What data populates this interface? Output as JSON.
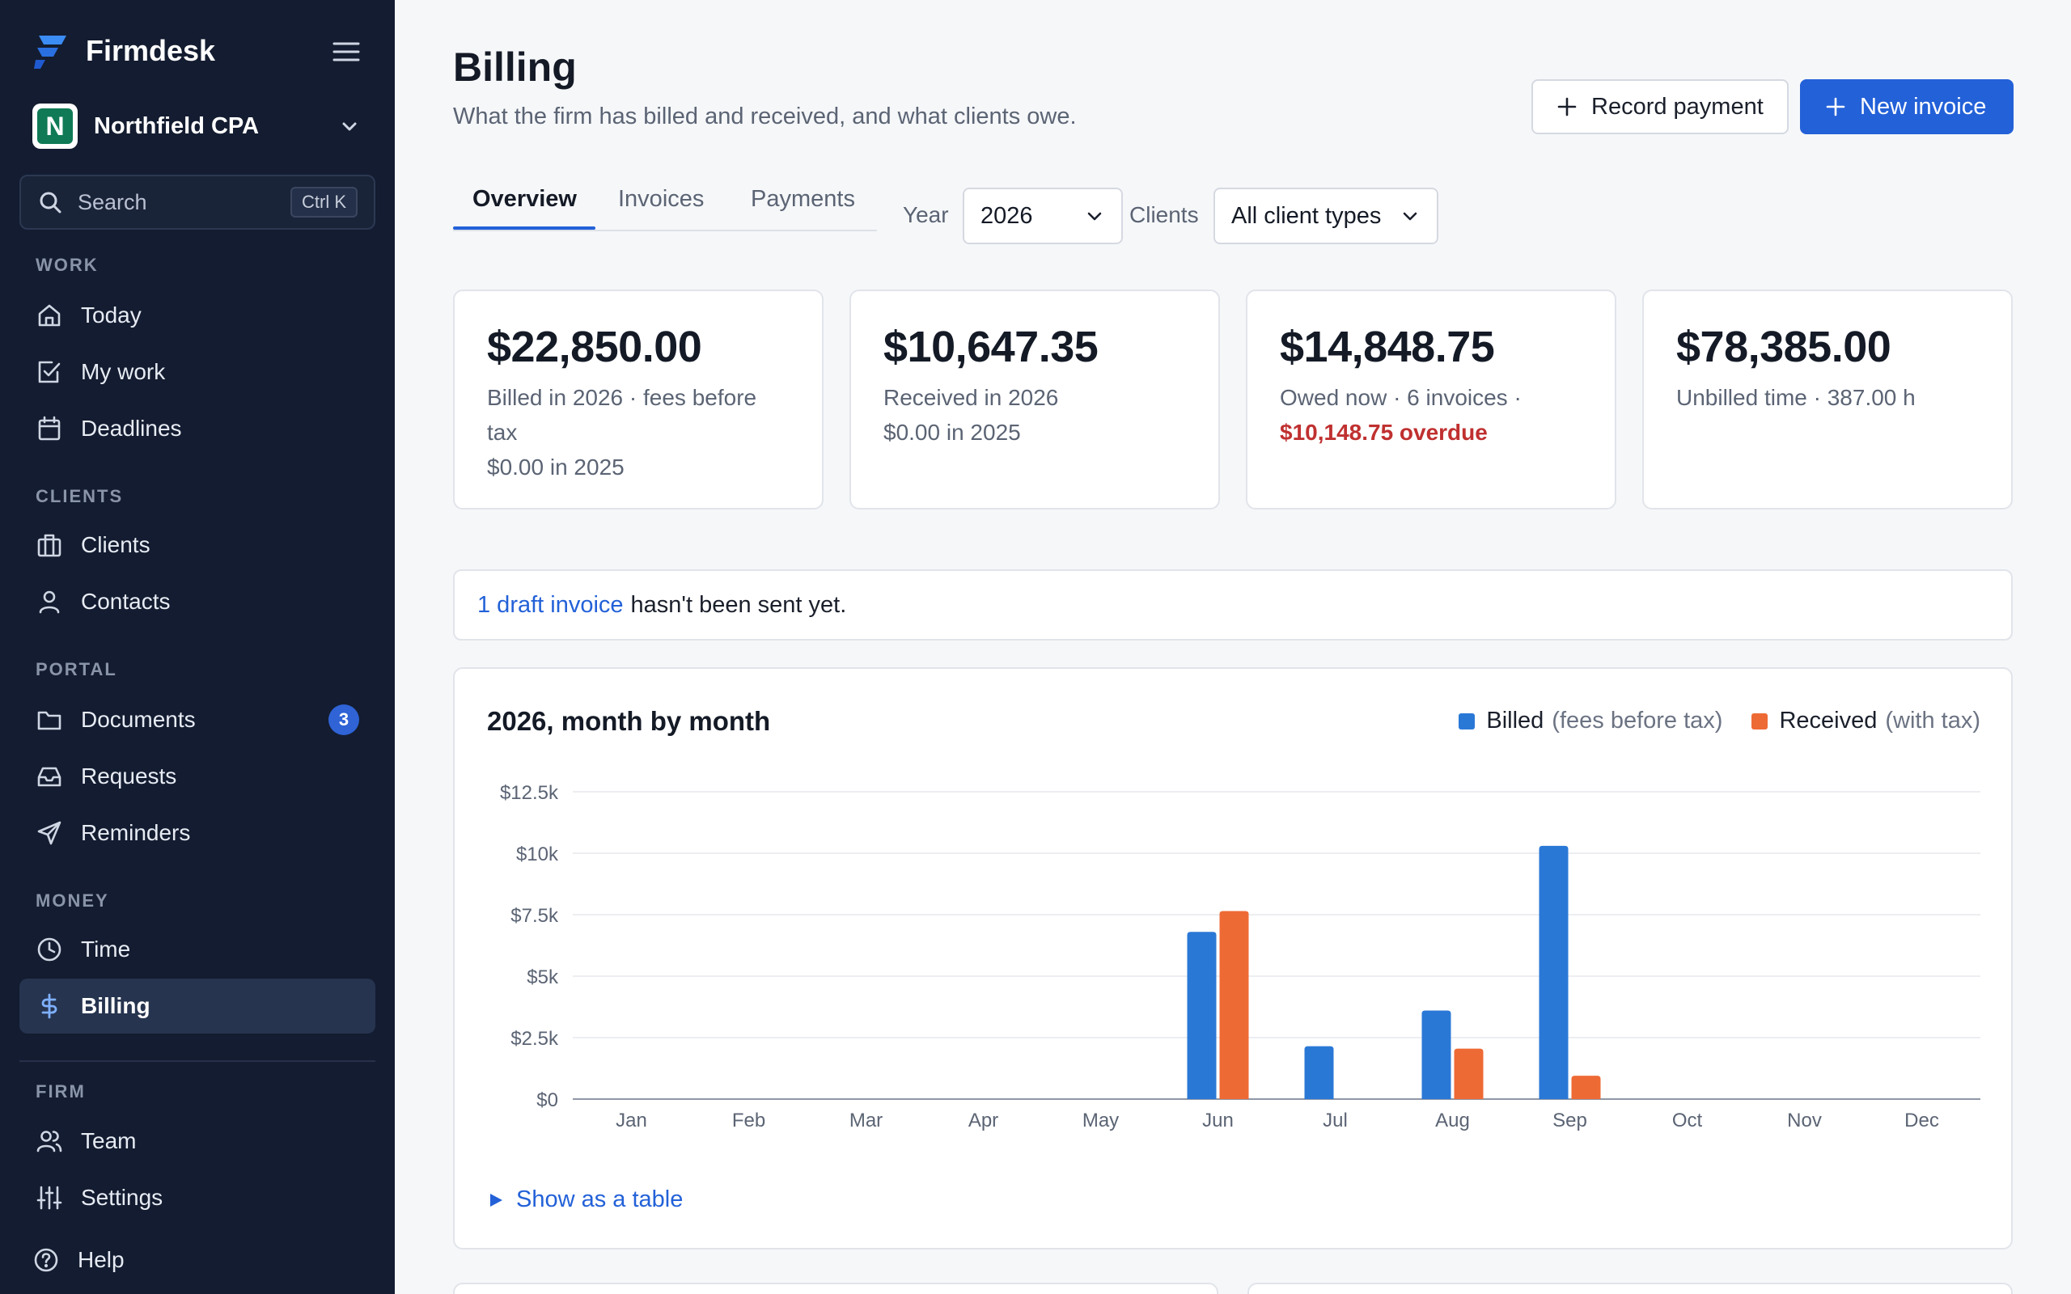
{
  "sidebar": {
    "brand": "Firmdesk",
    "org": {
      "initial": "N",
      "name": "Northfield CPA"
    },
    "search": {
      "label": "Search",
      "shortcut": "Ctrl K"
    },
    "sections": {
      "work": "WORK",
      "clients": "CLIENTS",
      "portal": "PORTAL",
      "money": "MONEY",
      "firm": "FIRM"
    },
    "items": {
      "today": "Today",
      "my_work": "My work",
      "deadlines": "Deadlines",
      "clients": "Clients",
      "contacts": "Contacts",
      "documents": "Documents",
      "documents_badge": "3",
      "requests": "Requests",
      "reminders": "Reminders",
      "time": "Time",
      "billing": "Billing",
      "team": "Team",
      "settings": "Settings",
      "help": "Help"
    }
  },
  "header": {
    "title": "Billing",
    "subtitle": "What the firm has billed and received, and what clients owe.",
    "record_payment": "Record payment",
    "new_invoice": "New invoice"
  },
  "tabs": {
    "overview": "Overview",
    "invoices": "Invoices",
    "payments": "Payments"
  },
  "filters": {
    "year_label": "Year",
    "year_value": "2026",
    "clients_label": "Clients",
    "clients_value": "All client types"
  },
  "kpis": {
    "billed": {
      "value": "$22,850.00",
      "line1": "Billed in 2026 · fees before tax",
      "line2": "$0.00 in 2025"
    },
    "received": {
      "value": "$10,647.35",
      "line1": "Received in 2026",
      "line2": "$0.00 in 2025"
    },
    "owed": {
      "value": "$14,848.75",
      "line1": "Owed now · 6 invoices ·",
      "overdue": "$10,148.75 overdue"
    },
    "unbilled": {
      "value": "$78,385.00",
      "line1": "Unbilled time · 387.00 h"
    }
  },
  "notice": {
    "link": "1 draft invoice",
    "text": "hasn't been sent yet."
  },
  "chart": {
    "title": "2026, month by month",
    "legend": {
      "billed_name": "Billed",
      "billed_note": "(fees before tax)",
      "received_name": "Received",
      "received_note": "(with tax)"
    },
    "toggle": "Show as a table"
  },
  "colors": {
    "billed": "#2a78d6",
    "received": "#ee6a35",
    "accent": "#2361d8",
    "overdue": "#c03030"
  },
  "chart_data": {
    "type": "bar",
    "title": "2026, month by month",
    "categories": [
      "Jan",
      "Feb",
      "Mar",
      "Apr",
      "May",
      "Jun",
      "Jul",
      "Aug",
      "Sep",
      "Oct",
      "Nov",
      "Dec"
    ],
    "series": [
      {
        "name": "Billed",
        "values": [
          0,
          0,
          0,
          0,
          0,
          6800,
          2150,
          3600,
          10300,
          0,
          0,
          0
        ]
      },
      {
        "name": "Received",
        "values": [
          0,
          0,
          0,
          0,
          0,
          7650,
          0,
          2050,
          950,
          0,
          0,
          0
        ]
      }
    ],
    "yticks": [
      "$0",
      "$2.5k",
      "$5k",
      "$7.5k",
      "$10k",
      "$12.5k"
    ],
    "ylim": [
      0,
      12500
    ],
    "grid": true,
    "legend": "top-right"
  }
}
